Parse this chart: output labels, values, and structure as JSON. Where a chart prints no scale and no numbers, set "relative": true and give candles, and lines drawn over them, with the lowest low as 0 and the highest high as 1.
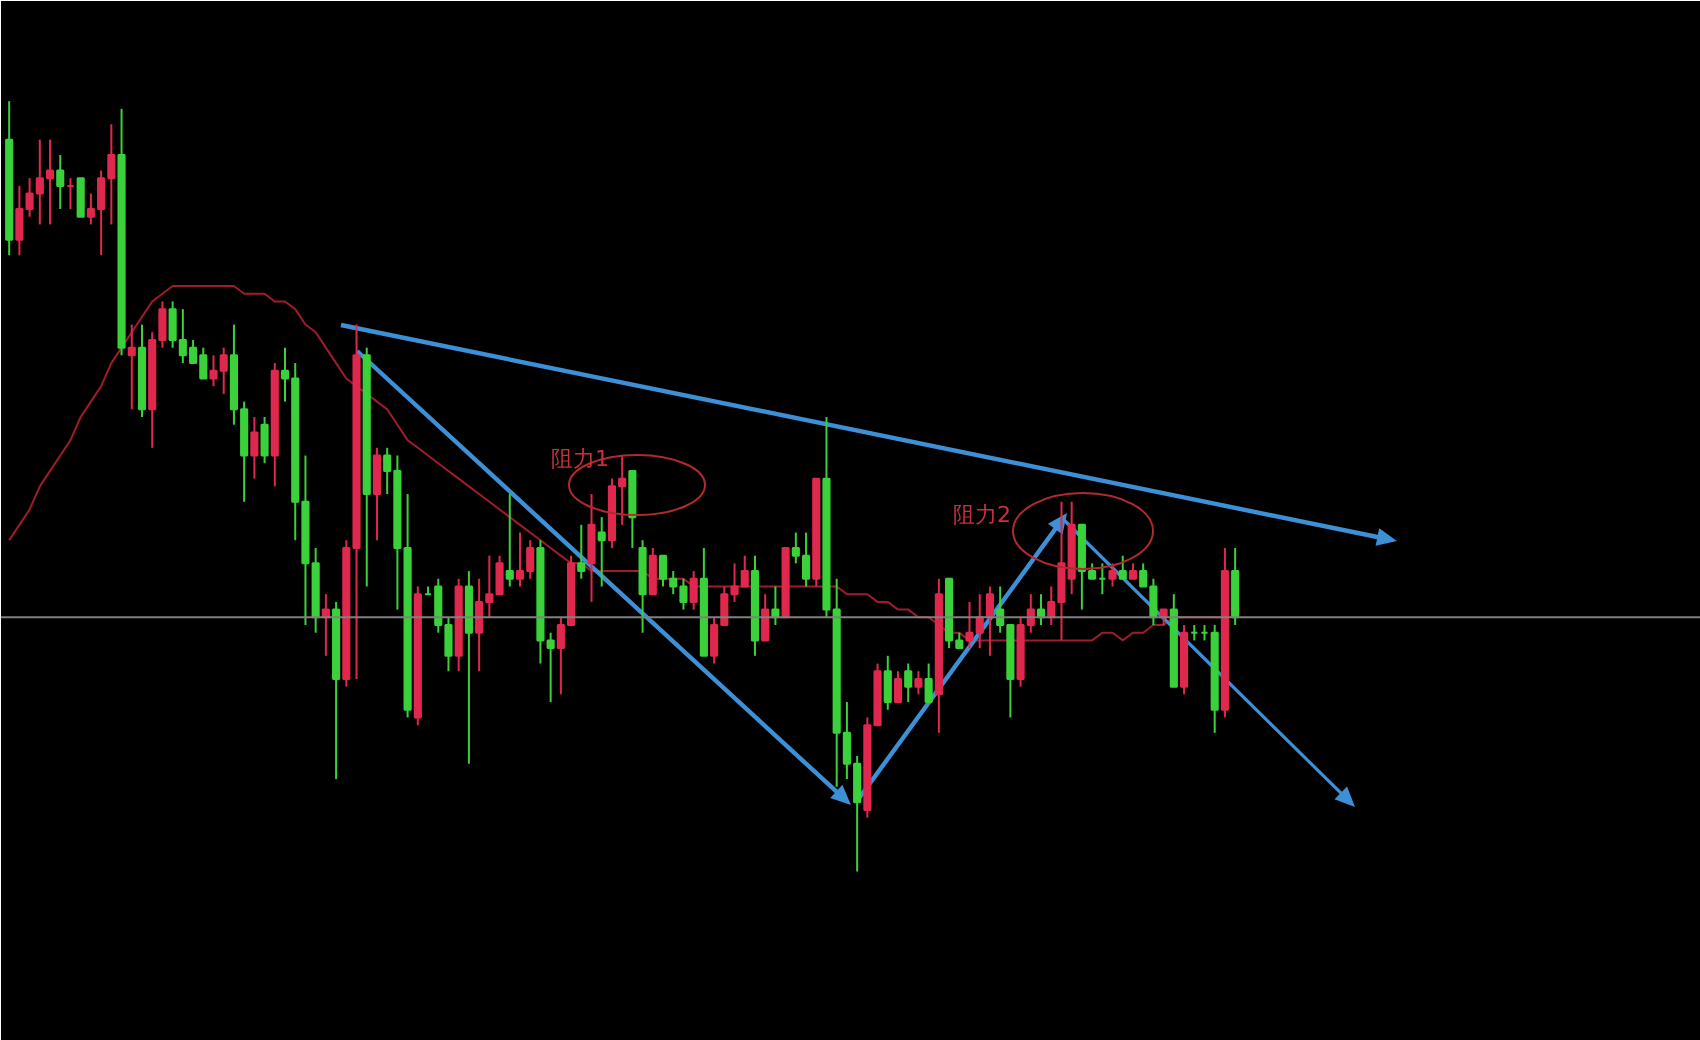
{
  "chart_data": {
    "type": "candlestick",
    "relative": true,
    "categories": [
      null,
      null,
      null,
      null,
      null,
      null,
      null,
      null,
      null,
      null,
      null,
      null,
      null,
      null,
      null,
      null,
      null,
      null,
      null,
      null,
      null,
      null,
      null,
      null,
      null,
      null,
      null,
      null,
      null,
      null,
      null,
      null,
      null,
      null,
      null,
      null,
      null,
      null,
      null,
      null,
      null,
      null,
      null,
      null,
      null,
      null,
      null,
      null,
      null,
      null,
      null,
      null,
      null,
      null,
      null,
      null,
      null,
      null,
      null,
      null,
      null,
      null,
      null,
      null,
      null,
      null,
      null,
      null,
      null,
      null,
      null,
      null,
      null,
      null,
      null,
      null,
      null,
      null,
      null,
      null,
      null,
      null,
      null,
      null,
      null,
      null,
      null,
      null,
      null,
      null,
      null,
      null,
      null,
      null,
      null,
      null,
      null,
      null,
      null,
      null,
      null,
      null,
      null,
      null,
      null,
      null,
      null,
      null,
      null,
      null,
      null,
      null,
      null,
      null,
      null,
      null,
      null,
      null,
      null,
      null,
      null
    ],
    "ohlc": [
      [
        0.95,
        1.0,
        0.8,
        0.82
      ],
      [
        0.82,
        0.89,
        0.8,
        0.86
      ],
      [
        0.86,
        0.9,
        0.85,
        0.88
      ],
      [
        0.88,
        0.95,
        0.84,
        0.9
      ],
      [
        0.9,
        0.95,
        0.84,
        0.91
      ],
      [
        0.91,
        0.93,
        0.86,
        0.89
      ],
      [
        0.89,
        0.9,
        0.86,
        0.89
      ],
      [
        0.9,
        0.9,
        0.85,
        0.85
      ],
      [
        0.85,
        0.88,
        0.84,
        0.86
      ],
      [
        0.86,
        0.91,
        0.8,
        0.9
      ],
      [
        0.9,
        0.97,
        0.84,
        0.93
      ],
      [
        0.93,
        0.99,
        0.67,
        0.68
      ],
      [
        0.67,
        0.71,
        0.6,
        0.68
      ],
      [
        0.68,
        0.71,
        0.59,
        0.6
      ],
      [
        0.6,
        0.7,
        0.55,
        0.69
      ],
      [
        0.69,
        0.74,
        0.68,
        0.73
      ],
      [
        0.73,
        0.74,
        0.68,
        0.69
      ],
      [
        0.69,
        0.73,
        0.66,
        0.67
      ],
      [
        0.68,
        0.69,
        0.66,
        0.66
      ],
      [
        0.67,
        0.68,
        0.64,
        0.64
      ],
      [
        0.64,
        0.67,
        0.63,
        0.65
      ],
      [
        0.65,
        0.68,
        0.62,
        0.67
      ],
      [
        0.67,
        0.71,
        0.58,
        0.6
      ],
      [
        0.6,
        0.61,
        0.48,
        0.54
      ],
      [
        0.54,
        0.59,
        0.51,
        0.57
      ],
      [
        0.58,
        0.59,
        0.53,
        0.54
      ],
      [
        0.54,
        0.66,
        0.5,
        0.65
      ],
      [
        0.65,
        0.68,
        0.61,
        0.64
      ],
      [
        0.64,
        0.66,
        0.43,
        0.48
      ],
      [
        0.48,
        0.54,
        0.32,
        0.4
      ],
      [
        0.4,
        0.42,
        0.31,
        0.33
      ],
      [
        0.33,
        0.36,
        0.28,
        0.34
      ],
      [
        0.34,
        0.35,
        0.12,
        0.25
      ],
      [
        0.25,
        0.43,
        0.24,
        0.42
      ],
      [
        0.42,
        0.71,
        0.25,
        0.67
      ],
      [
        0.67,
        0.68,
        0.37,
        0.49
      ],
      [
        0.49,
        0.55,
        0.43,
        0.54
      ],
      [
        0.54,
        0.55,
        0.49,
        0.52
      ],
      [
        0.52,
        0.54,
        0.34,
        0.42
      ],
      [
        0.42,
        0.49,
        0.2,
        0.21
      ],
      [
        0.2,
        0.37,
        0.19,
        0.36
      ],
      [
        0.36,
        0.37,
        0.36,
        0.36
      ],
      [
        0.37,
        0.38,
        0.31,
        0.32
      ],
      [
        0.32,
        0.33,
        0.26,
        0.28
      ],
      [
        0.28,
        0.38,
        0.26,
        0.37
      ],
      [
        0.37,
        0.39,
        0.14,
        0.31
      ],
      [
        0.31,
        0.38,
        0.26,
        0.35
      ],
      [
        0.35,
        0.41,
        0.33,
        0.36
      ],
      [
        0.36,
        0.41,
        0.36,
        0.4
      ],
      [
        0.39,
        0.49,
        0.37,
        0.38
      ],
      [
        0.38,
        0.44,
        0.37,
        0.39
      ],
      [
        0.39,
        0.43,
        0.38,
        0.42
      ],
      [
        0.42,
        0.43,
        0.27,
        0.3
      ],
      [
        0.3,
        0.31,
        0.22,
        0.29
      ],
      [
        0.29,
        0.33,
        0.23,
        0.32
      ],
      [
        0.32,
        0.41,
        0.32,
        0.4
      ],
      [
        0.4,
        0.45,
        0.38,
        0.39
      ],
      [
        0.4,
        0.49,
        0.35,
        0.45
      ],
      [
        0.44,
        0.46,
        0.37,
        0.43
      ],
      [
        0.43,
        0.51,
        0.42,
        0.5
      ],
      [
        0.5,
        0.54,
        0.45,
        0.51
      ],
      [
        0.52,
        0.52,
        0.42,
        0.46
      ],
      [
        0.42,
        0.43,
        0.31,
        0.36
      ],
      [
        0.36,
        0.42,
        0.36,
        0.41
      ],
      [
        0.41,
        0.41,
        0.37,
        0.38
      ],
      [
        0.38,
        0.39,
        0.36,
        0.37
      ],
      [
        0.37,
        0.38,
        0.34,
        0.35
      ],
      [
        0.35,
        0.39,
        0.34,
        0.38
      ],
      [
        0.38,
        0.42,
        0.28,
        0.28
      ],
      [
        0.28,
        0.33,
        0.27,
        0.32
      ],
      [
        0.32,
        0.37,
        0.32,
        0.36
      ],
      [
        0.36,
        0.4,
        0.35,
        0.37
      ],
      [
        0.37,
        0.41,
        0.37,
        0.39
      ],
      [
        0.39,
        0.41,
        0.28,
        0.3
      ],
      [
        0.3,
        0.36,
        0.3,
        0.34
      ],
      [
        0.34,
        0.37,
        0.32,
        0.33
      ],
      [
        0.33,
        0.42,
        0.33,
        0.42
      ],
      [
        0.42,
        0.44,
        0.4,
        0.41
      ],
      [
        0.41,
        0.44,
        0.37,
        0.38
      ],
      [
        0.38,
        0.51,
        0.37,
        0.51
      ],
      [
        0.51,
        0.59,
        0.33,
        0.34
      ],
      [
        0.34,
        0.38,
        0.11,
        0.18
      ],
      [
        0.18,
        0.22,
        0.12,
        0.14
      ],
      [
        0.14,
        0.15,
        0.0,
        0.09
      ],
      [
        0.08,
        0.2,
        0.07,
        0.19
      ],
      [
        0.19,
        0.27,
        0.19,
        0.26
      ],
      [
        0.26,
        0.28,
        0.21,
        0.22
      ],
      [
        0.22,
        0.26,
        0.22,
        0.25
      ],
      [
        0.26,
        0.27,
        0.22,
        0.24
      ],
      [
        0.24,
        0.26,
        0.23,
        0.25
      ],
      [
        0.25,
        0.27,
        0.22,
        0.22
      ],
      [
        0.23,
        0.38,
        0.18,
        0.36
      ],
      [
        0.38,
        0.38,
        0.29,
        0.3
      ],
      [
        0.3,
        0.31,
        0.29,
        0.29
      ],
      [
        0.3,
        0.35,
        0.29,
        0.31
      ],
      [
        0.31,
        0.36,
        0.29,
        0.33
      ],
      [
        0.33,
        0.37,
        0.28,
        0.36
      ],
      [
        0.34,
        0.37,
        0.31,
        0.32
      ],
      [
        0.32,
        0.32,
        0.2,
        0.25
      ],
      [
        0.25,
        0.33,
        0.24,
        0.32
      ],
      [
        0.32,
        0.36,
        0.31,
        0.34
      ],
      [
        0.34,
        0.36,
        0.32,
        0.33
      ],
      [
        0.33,
        0.37,
        0.32,
        0.35
      ],
      [
        0.35,
        0.48,
        0.3,
        0.4
      ],
      [
        0.38,
        0.48,
        0.36,
        0.45
      ],
      [
        0.45,
        0.45,
        0.34,
        0.39
      ],
      [
        0.39,
        0.4,
        0.38,
        0.38
      ],
      [
        0.38,
        0.4,
        0.36,
        0.38
      ],
      [
        0.38,
        0.4,
        0.37,
        0.39
      ],
      [
        0.39,
        0.41,
        0.38,
        0.38
      ],
      [
        0.38,
        0.4,
        0.38,
        0.39
      ],
      [
        0.39,
        0.4,
        0.37,
        0.37
      ],
      [
        0.37,
        0.38,
        0.32,
        0.33
      ],
      [
        0.33,
        0.34,
        0.32,
        0.34
      ],
      [
        0.34,
        0.36,
        0.24,
        0.24
      ],
      [
        0.24,
        0.32,
        0.23,
        0.31
      ],
      [
        0.31,
        0.32,
        0.3,
        0.31
      ],
      [
        0.31,
        0.32,
        0.3,
        0.31
      ],
      [
        0.31,
        0.32,
        0.18,
        0.21
      ],
      [
        0.21,
        0.42,
        0.2,
        0.39
      ],
      [
        0.39,
        0.42,
        0.32,
        0.33
      ]
    ],
    "colors": [
      "#3ad13a",
      "#e0284e",
      "#e0284e",
      "#e0284e",
      "#e0284e",
      "#3ad13a",
      "#e0284e",
      "#3ad13a",
      "#e0284e",
      "#e0284e",
      "#e0284e",
      "#3ad13a",
      "#e0284e",
      "#3ad13a",
      "#e0284e",
      "#e0284e",
      "#3ad13a",
      "#3ad13a",
      "#3ad13a",
      "#3ad13a",
      "#e0284e",
      "#e0284e",
      "#3ad13a",
      "#3ad13a",
      "#e0284e",
      "#3ad13a",
      "#e0284e",
      "#3ad13a",
      "#3ad13a",
      "#3ad13a",
      "#3ad13a",
      "#e0284e",
      "#3ad13a",
      "#e0284e",
      "#e0284e",
      "#3ad13a",
      "#e0284e",
      "#3ad13a",
      "#3ad13a",
      "#3ad13a",
      "#e0284e",
      "#3ad13a",
      "#3ad13a",
      "#3ad13a",
      "#e0284e",
      "#3ad13a",
      "#e0284e",
      "#e0284e",
      "#e0284e",
      "#3ad13a",
      "#e0284e",
      "#e0284e",
      "#3ad13a",
      "#3ad13a",
      "#e0284e",
      "#e0284e",
      "#3ad13a",
      "#e0284e",
      "#3ad13a",
      "#e0284e",
      "#e0284e",
      "#3ad13a",
      "#3ad13a",
      "#e0284e",
      "#3ad13a",
      "#3ad13a",
      "#3ad13a",
      "#e0284e",
      "#3ad13a",
      "#e0284e",
      "#e0284e",
      "#e0284e",
      "#e0284e",
      "#3ad13a",
      "#e0284e",
      "#3ad13a",
      "#e0284e",
      "#3ad13a",
      "#3ad13a",
      "#e0284e",
      "#3ad13a",
      "#3ad13a",
      "#3ad13a",
      "#3ad13a",
      "#e0284e",
      "#e0284e",
      "#3ad13a",
      "#e0284e",
      "#3ad13a",
      "#e0284e",
      "#3ad13a",
      "#e0284e",
      "#3ad13a",
      "#3ad13a",
      "#e0284e",
      "#e0284e",
      "#e0284e",
      "#3ad13a",
      "#3ad13a",
      "#e0284e",
      "#e0284e",
      "#3ad13a",
      "#e0284e",
      "#e0284e",
      "#e0284e",
      "#3ad13a",
      "#3ad13a",
      "#3ad13a",
      "#e0284e",
      "#3ad13a",
      "#e0284e",
      "#3ad13a",
      "#3ad13a",
      "#e0284e",
      "#3ad13a",
      "#e0284e",
      "#3ad13a",
      "#3ad13a",
      "#3ad13a",
      "#e0284e",
      "#3ad13a"
    ],
    "series": [
      {
        "type": "line",
        "color": "#a01c2c",
        "values": [
          0.43,
          0.45,
          0.47,
          0.5,
          0.52,
          0.54,
          0.56,
          0.59,
          0.61,
          0.63,
          0.66,
          0.68,
          0.7,
          0.72,
          0.74,
          0.75,
          0.76,
          0.76,
          0.76,
          0.76,
          0.76,
          0.76,
          0.76,
          0.75,
          0.75,
          0.75,
          0.74,
          0.74,
          0.73,
          0.71,
          0.7,
          0.68,
          0.66,
          0.64,
          0.63,
          0.62,
          0.61,
          0.6,
          0.58,
          0.56,
          0.55,
          0.54,
          0.53,
          0.52,
          0.51,
          0.5,
          0.49,
          0.48,
          0.47,
          0.46,
          0.45,
          0.44,
          0.43,
          0.42,
          0.41,
          0.4,
          0.4,
          0.39,
          0.39,
          0.39,
          0.39,
          0.39,
          0.39,
          0.38,
          0.38,
          0.38,
          0.38,
          0.37,
          0.37,
          0.37,
          0.37,
          0.37,
          0.37,
          0.37,
          0.37,
          0.37,
          0.37,
          0.37,
          0.37,
          0.37,
          0.37,
          0.37,
          0.36,
          0.36,
          0.36,
          0.35,
          0.35,
          0.34,
          0.34,
          0.33,
          0.33,
          0.32,
          0.31,
          0.31,
          0.3,
          0.3,
          0.3,
          0.3,
          0.3,
          0.3,
          0.3,
          0.3,
          0.3,
          0.3,
          0.3,
          0.3,
          0.3,
          0.31,
          0.31,
          0.3,
          0.31,
          0.31,
          0.32,
          0.32,
          0.33,
          0.33,
          0.33,
          0.33,
          0.33,
          0.33,
          null
        ]
      }
    ],
    "ref_lines": [
      {
        "axis": "y",
        "value": 0.33,
        "color": "#808080"
      }
    ],
    "annotations": [
      "阻力1",
      "阻力2"
    ]
  }
}
